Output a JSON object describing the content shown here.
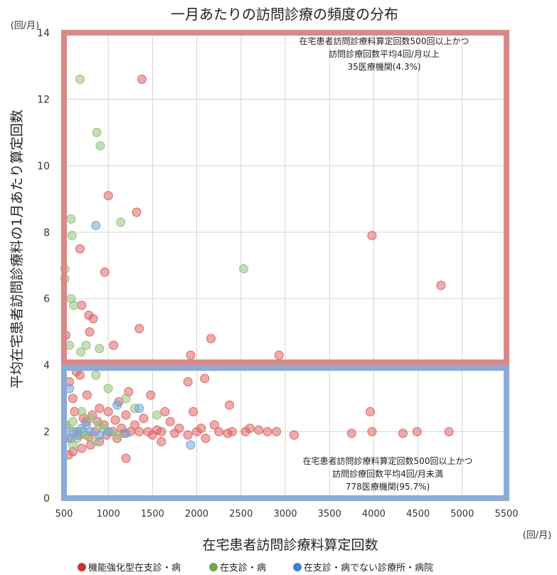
{
  "chart_data": {
    "type": "scatter",
    "title": "一月あたりの訪問診療の頻度の分布",
    "xlabel": "在宅患者訪問診療料算定回数",
    "ylabel": "平均在宅患者訪問診療料の1月あたり算定回数",
    "x_unit": "(回/月)",
    "y_unit": "(回/月)",
    "xlim": [
      500,
      5500
    ],
    "ylim": [
      0,
      14
    ],
    "x_ticks": [
      "500",
      "1000",
      "1500",
      "2000",
      "2500",
      "3000",
      "3500",
      "4000",
      "4500",
      "5000",
      "5500"
    ],
    "y_ticks": [
      "0",
      "2",
      "4",
      "6",
      "8",
      "10",
      "12",
      "14"
    ],
    "grid": true,
    "legend_position": "bottom",
    "annotations": [
      {
        "region": "upper",
        "lines": [
          "在宅患者訪問診療料算定回数500回以上かつ",
          "訪問診療回数平均4回/月以上",
          "35医療機関(4.3%)"
        ]
      },
      {
        "region": "lower",
        "lines": [
          "在宅患者訪問診療料算定回数500回以上かつ",
          "訪問診療回数平均4回/月未満",
          "778医療機関(95.7%)"
        ]
      }
    ],
    "series": [
      {
        "name": "●機能強化型在支診・病",
        "color": "#e06666",
        "points": [
          [
            1380,
            12.6
          ],
          [
            1000,
            9.1
          ],
          [
            1320,
            8.6
          ],
          [
            3980,
            7.9
          ],
          [
            4760,
            6.4
          ],
          [
            960,
            6.8
          ],
          [
            680,
            7.5
          ],
          [
            700,
            5.8
          ],
          [
            780,
            5.5
          ],
          [
            830,
            5.4
          ],
          [
            790,
            5.0
          ],
          [
            1350,
            5.1
          ],
          [
            520,
            4.9
          ],
          [
            2160,
            4.8
          ],
          [
            1060,
            4.6
          ],
          [
            1930,
            4.3
          ],
          [
            2930,
            4.3
          ],
          [
            640,
            3.8
          ],
          [
            560,
            3.5
          ],
          [
            680,
            3.7
          ],
          [
            1230,
            3.2
          ],
          [
            1480,
            3.1
          ],
          [
            2090,
            3.6
          ],
          [
            1900,
            3.5
          ],
          [
            2370,
            2.8
          ],
          [
            1640,
            2.6
          ],
          [
            1960,
            2.6
          ],
          [
            3960,
            2.6
          ],
          [
            1120,
            2.9
          ],
          [
            760,
            3.1
          ],
          [
            600,
            3.0
          ],
          [
            900,
            2.7
          ],
          [
            1000,
            2.6
          ],
          [
            1200,
            2.5
          ],
          [
            1400,
            2.4
          ],
          [
            1700,
            2.3
          ],
          [
            2200,
            2.2
          ],
          [
            2600,
            2.1
          ],
          [
            2800,
            2.0
          ],
          [
            3100,
            1.9
          ],
          [
            3750,
            1.95
          ],
          [
            3980,
            2.0
          ],
          [
            4330,
            1.95
          ],
          [
            4490,
            2.0
          ],
          [
            4850,
            2.0
          ],
          [
            2400,
            2.0
          ],
          [
            2700,
            2.05
          ],
          [
            2900,
            2.0
          ],
          [
            1800,
            2.1
          ],
          [
            1900,
            1.9
          ],
          [
            2000,
            2.0
          ],
          [
            2100,
            1.8
          ],
          [
            1600,
            2.0
          ],
          [
            1500,
            1.9
          ],
          [
            1300,
            2.2
          ],
          [
            1100,
            1.8
          ],
          [
            900,
            1.7
          ],
          [
            800,
            1.6
          ],
          [
            700,
            1.5
          ],
          [
            600,
            1.4
          ],
          [
            550,
            1.3
          ],
          [
            1200,
            1.2
          ],
          [
            1600,
            1.7
          ],
          [
            1450,
            2.0
          ],
          [
            1250,
            2.0
          ],
          [
            1050,
            2.0
          ],
          [
            850,
            2.0
          ],
          [
            650,
            2.0
          ],
          [
            750,
            2.3
          ],
          [
            950,
            2.2
          ],
          [
            1150,
            2.1
          ],
          [
            1350,
            2.0
          ],
          [
            1550,
            2.05
          ],
          [
            1750,
            1.95
          ],
          [
            2250,
            2.0
          ],
          [
            2050,
            2.1
          ],
          [
            2350,
            1.95
          ],
          [
            2550,
            2.0
          ],
          [
            620,
            2.6
          ],
          [
            720,
            2.4
          ],
          [
            820,
            2.5
          ],
          [
            520,
            2.2
          ],
          [
            580,
            1.8
          ],
          [
            680,
            1.9
          ],
          [
            780,
            1.85
          ],
          [
            880,
            2.3
          ],
          [
            980,
            1.9
          ],
          [
            1080,
            2.35
          ],
          [
            1180,
            1.95
          ]
        ]
      },
      {
        "name": "●在支診・病",
        "color": "#93c47d",
        "points": [
          [
            680,
            12.6
          ],
          [
            870,
            11.0
          ],
          [
            910,
            10.6
          ],
          [
            1140,
            8.3
          ],
          [
            580,
            8.4
          ],
          [
            590,
            7.9
          ],
          [
            2530,
            6.9
          ],
          [
            510,
            6.9
          ],
          [
            510,
            6.6
          ],
          [
            580,
            6.0
          ],
          [
            610,
            5.8
          ],
          [
            750,
            4.6
          ],
          [
            900,
            4.5
          ],
          [
            690,
            4.4
          ],
          [
            560,
            4.6
          ],
          [
            860,
            3.7
          ],
          [
            1000,
            3.3
          ],
          [
            1200,
            3.0
          ],
          [
            1300,
            2.7
          ],
          [
            1550,
            2.5
          ],
          [
            700,
            2.6
          ],
          [
            800,
            2.4
          ],
          [
            900,
            2.2
          ],
          [
            600,
            2.3
          ],
          [
            650,
            1.8
          ],
          [
            750,
            1.9
          ],
          [
            550,
            2.1
          ],
          [
            1000,
            2.0
          ],
          [
            1100,
            1.9
          ],
          [
            850,
            1.7
          ],
          [
            950,
            2.1
          ],
          [
            700,
            2.0
          ],
          [
            600,
            1.6
          ]
        ]
      },
      {
        "name": "●在支診・病でない診療所・病院",
        "color": "#6fa8dc",
        "points": [
          [
            860,
            8.2
          ],
          [
            1100,
            2.8
          ],
          [
            1350,
            2.7
          ],
          [
            1930,
            1.6
          ],
          [
            560,
            3.3
          ],
          [
            600,
            2.0
          ],
          [
            700,
            2.1
          ],
          [
            650,
            1.9
          ],
          [
            800,
            2.0
          ],
          [
            900,
            1.9
          ],
          [
            1000,
            2.0
          ],
          [
            1200,
            1.95
          ],
          [
            750,
            2.2
          ],
          [
            550,
            1.8
          ]
        ]
      }
    ],
    "legend": [
      {
        "label": "●機能強化型在支診・病",
        "color": "#cc3333"
      },
      {
        "label": "●在支診・病",
        "color": "#6aa84f"
      },
      {
        "label": "●在支診・病でない診療所・病院",
        "color": "#3d85c6"
      }
    ]
  }
}
